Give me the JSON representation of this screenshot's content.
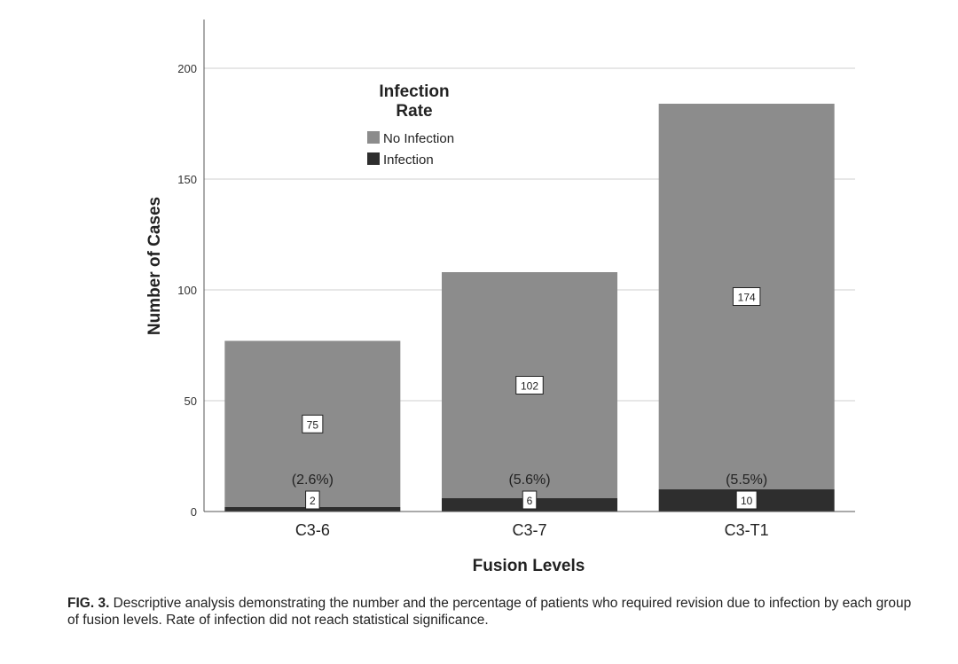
{
  "chart_data": {
    "type": "bar",
    "stacked": true,
    "categories": [
      "C3-6",
      "C3-7",
      "C3-T1"
    ],
    "series": [
      {
        "name": "Infection",
        "values": [
          2,
          6,
          10
        ],
        "color": "#2e2e2e"
      },
      {
        "name": "No Infection",
        "values": [
          75,
          102,
          174
        ],
        "color": "#8c8c8c"
      }
    ],
    "infection_rate_labels": [
      "(2.6%)",
      "(5.6%)",
      "(5.5%)"
    ],
    "xlabel": "Fusion Levels",
    "ylabel": "Number of Cases",
    "ylim": [
      0,
      220
    ],
    "yticks": [
      "0",
      "50",
      "100",
      "150",
      "200"
    ],
    "legend": {
      "title": "Infection Rate",
      "title_lines": [
        "Infection",
        "Rate"
      ],
      "placement": "top-left",
      "entries": [
        "No Infection",
        "Infection"
      ]
    },
    "grid": true
  },
  "caption": {
    "prefix": "FIG. 3.",
    "text": " Descriptive analysis demonstrating the number and the percentage of patients who required revision due to infection by each group of fusion levels. Rate of infection did not reach statistical significance."
  }
}
